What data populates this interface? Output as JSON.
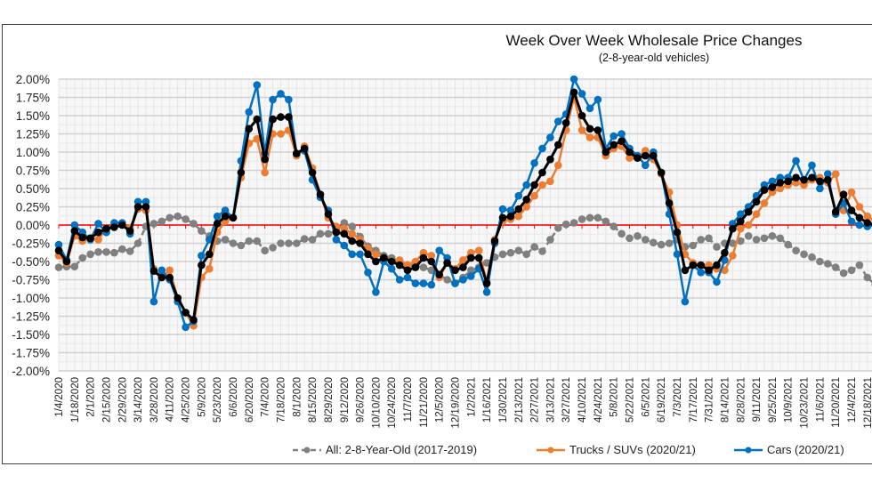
{
  "chart_data": {
    "type": "line",
    "title": "Week Over Week Wholesale Price Changes",
    "subtitle": "(2-8-year-old vehicles)",
    "xlabel": "",
    "ylabel": "",
    "ylim": [
      -2.0,
      2.0
    ],
    "y_ticks": [
      "2.00%",
      "1.75%",
      "1.50%",
      "1.25%",
      "1.00%",
      "0.75%",
      "0.50%",
      "0.25%",
      "0.00%",
      "-0.25%",
      "-0.50%",
      "-0.75%",
      "-1.00%",
      "-1.25%",
      "-1.50%",
      "-1.75%",
      "-2.00%"
    ],
    "y_tick_values": [
      2.0,
      1.75,
      1.5,
      1.25,
      1.0,
      0.75,
      0.5,
      0.25,
      0.0,
      -0.25,
      -0.5,
      -0.75,
      -1.0,
      -1.25,
      -1.5,
      -1.75,
      -2.0
    ],
    "grid": true,
    "zero_line_color": "#ff0000",
    "x_tick_labels": [
      "1/4/2020",
      "1/18/2020",
      "2/1/2020",
      "2/15/2020",
      "2/29/2020",
      "3/14/2020",
      "3/28/2020",
      "4/11/2020",
      "4/25/2020",
      "5/9/2020",
      "5/23/2020",
      "6/6/2020",
      "6/20/2020",
      "7/4/2020",
      "7/18/2020",
      "8/1/2020",
      "8/15/2020",
      "8/29/2020",
      "9/12/2020",
      "9/26/2020",
      "10/10/2020",
      "10/24/2020",
      "11/7/2020",
      "11/21/2020",
      "12/5/2020",
      "12/19/2020",
      "1/2/2021",
      "1/16/2021",
      "1/30/2021",
      "2/13/2021",
      "2/27/2021",
      "3/13/2021",
      "3/27/2021",
      "4/10/2021",
      "4/24/2021",
      "5/8/2021",
      "5/22/2021",
      "6/5/2021",
      "6/19/2021",
      "7/3/2021",
      "7/17/2021",
      "7/31/2021",
      "8/14/2021",
      "8/28/2021",
      "9/11/2021",
      "9/25/2021",
      "10/9/2021",
      "10/23/2021",
      "11/6/2021",
      "11/20/2021",
      "12/4/2021",
      "12/18/2021"
    ],
    "x_unit": "weekly, first point 1/4/2020",
    "legend_position": "bottom",
    "series": [
      {
        "name": "All: 2-8-Year-Old (2017-2019)",
        "color": "#808080",
        "dashed": true,
        "values": [
          -0.58,
          -0.57,
          -0.57,
          -0.45,
          -0.4,
          -0.37,
          -0.37,
          -0.38,
          -0.33,
          -0.36,
          -0.25,
          -0.02,
          0.02,
          0.05,
          0.1,
          0.12,
          0.08,
          0.02,
          -0.08,
          -0.15,
          -0.22,
          -0.2,
          -0.25,
          -0.28,
          -0.22,
          -0.22,
          -0.35,
          -0.31,
          -0.25,
          -0.25,
          -0.25,
          -0.19,
          -0.2,
          -0.12,
          -0.12,
          -0.08,
          0.03,
          -0.02,
          -0.16,
          -0.29,
          -0.35,
          -0.42,
          -0.45,
          -0.5,
          -0.55,
          -0.56,
          -0.58,
          -0.62,
          -0.68,
          -0.75,
          -0.8,
          -0.72,
          -0.62,
          -0.58,
          -0.52,
          -0.44,
          -0.4,
          -0.38,
          -0.35,
          -0.4,
          -0.3,
          -0.36,
          -0.2,
          -0.04,
          0.01,
          0.03,
          0.08,
          0.1,
          0.1,
          0.05,
          -0.02,
          -0.12,
          -0.18,
          -0.15,
          -0.2,
          -0.24,
          -0.27,
          -0.25,
          -0.2,
          -0.3,
          -0.28,
          -0.2,
          -0.18,
          -0.3,
          -0.25,
          -0.25,
          -0.22,
          -0.15,
          -0.2,
          -0.18,
          -0.15,
          -0.18,
          -0.27,
          -0.35,
          -0.4,
          -0.44,
          -0.5,
          -0.53,
          -0.58,
          -0.66,
          -0.62,
          -0.55,
          -0.72,
          -0.82,
          -0.75,
          -0.63,
          -0.58
        ]
      },
      {
        "name": "Trucks / SUVs (2020/21)",
        "color": "#ed7d31",
        "dashed": false,
        "values": [
          -0.42,
          -0.52,
          -0.15,
          -0.22,
          -0.18,
          -0.2,
          -0.05,
          -0.02,
          0.02,
          -0.04,
          0.22,
          0.2,
          -0.6,
          -0.72,
          -0.62,
          -1.0,
          -1.2,
          -1.38,
          -0.72,
          -0.6,
          -0.1,
          0.05,
          0.1,
          0.65,
          1.12,
          1.18,
          0.72,
          1.25,
          1.25,
          1.3,
          0.95,
          1.08,
          0.78,
          0.42,
          0.1,
          -0.02,
          -0.05,
          -0.12,
          -0.2,
          -0.32,
          -0.4,
          -0.45,
          -0.5,
          -0.48,
          -0.55,
          -0.5,
          -0.38,
          -0.42,
          -0.72,
          -0.52,
          -0.6,
          -0.48,
          -0.38,
          -0.35,
          -0.78,
          -0.2,
          0.05,
          0.08,
          0.12,
          0.25,
          0.4,
          0.55,
          0.6,
          0.82,
          1.3,
          1.75,
          1.3,
          1.2,
          1.2,
          0.95,
          1.05,
          1.08,
          0.92,
          0.92,
          1.02,
          0.9,
          0.7,
          0.45,
          0.0,
          -0.4,
          -0.52,
          -0.55,
          -0.55,
          -0.6,
          -0.62,
          -0.42,
          -0.05,
          0.0,
          0.15,
          0.3,
          0.45,
          0.5,
          0.55,
          0.58,
          0.55,
          0.62,
          0.65,
          0.58,
          0.7,
          0.2,
          0.45,
          0.25,
          0.12,
          0.05,
          0.0
        ]
      },
      {
        "name": "Cars (2020/21)",
        "color": "#0070c0",
        "dashed": false,
        "values": [
          -0.27,
          -0.48,
          0.0,
          -0.1,
          -0.2,
          0.02,
          -0.1,
          0.03,
          0.03,
          -0.12,
          0.32,
          0.32,
          -1.05,
          -0.62,
          -0.75,
          -1.05,
          -1.4,
          -1.32,
          -0.42,
          -0.2,
          0.12,
          0.2,
          0.1,
          0.88,
          1.55,
          1.92,
          0.98,
          1.72,
          1.8,
          1.72,
          0.98,
          1.02,
          0.62,
          0.38,
          0.2,
          -0.2,
          -0.28,
          -0.4,
          -0.4,
          -0.65,
          -0.92,
          -0.5,
          -0.6,
          -0.75,
          -0.72,
          -0.8,
          -0.8,
          -0.82,
          -0.35,
          -0.45,
          -0.8,
          -0.75,
          -0.7,
          -0.6,
          -0.92,
          -0.25,
          0.22,
          0.2,
          0.4,
          0.55,
          0.85,
          1.05,
          1.2,
          1.42,
          1.52,
          2.0,
          1.8,
          1.6,
          1.72,
          1.05,
          1.22,
          1.25,
          1.05,
          0.95,
          0.82,
          1.0,
          0.72,
          0.15,
          -0.4,
          -1.05,
          -0.55,
          -0.65,
          -0.65,
          -0.78,
          -0.48,
          0.02,
          0.15,
          0.25,
          0.4,
          0.55,
          0.6,
          0.65,
          0.65,
          0.88,
          0.62,
          0.82,
          0.5,
          0.7,
          0.15,
          0.3,
          0.05,
          0.0,
          -0.02,
          0.0
        ]
      },
      {
        "name": "Average (unlabeled black)",
        "color": "#000000",
        "dashed": false,
        "in_legend": false,
        "values": [
          -0.35,
          -0.5,
          -0.08,
          -0.17,
          -0.18,
          -0.1,
          -0.05,
          -0.03,
          0.0,
          -0.08,
          0.25,
          0.25,
          -0.63,
          -0.72,
          -0.72,
          -1.0,
          -1.2,
          -1.3,
          -0.55,
          -0.4,
          0.02,
          0.12,
          0.1,
          0.72,
          1.32,
          1.45,
          0.9,
          1.45,
          1.48,
          1.48,
          0.98,
          1.05,
          0.72,
          0.42,
          0.15,
          -0.1,
          -0.12,
          -0.22,
          -0.25,
          -0.4,
          -0.5,
          -0.45,
          -0.5,
          -0.55,
          -0.62,
          -0.58,
          -0.45,
          -0.5,
          -0.68,
          -0.52,
          -0.62,
          -0.58,
          -0.45,
          -0.45,
          -0.8,
          -0.22,
          0.1,
          0.12,
          0.22,
          0.35,
          0.55,
          0.72,
          0.9,
          1.1,
          1.4,
          1.82,
          1.5,
          1.32,
          1.3,
          1.0,
          1.1,
          1.15,
          1.0,
          0.92,
          0.95,
          0.95,
          0.72,
          0.3,
          -0.1,
          -0.62,
          -0.55,
          -0.55,
          -0.62,
          -0.55,
          -0.38,
          -0.05,
          0.05,
          0.18,
          0.32,
          0.48,
          0.52,
          0.58,
          0.6,
          0.65,
          0.62,
          0.65,
          0.6,
          0.62,
          0.18,
          0.42,
          0.2,
          0.1,
          0.03,
          0.0
        ]
      }
    ]
  }
}
